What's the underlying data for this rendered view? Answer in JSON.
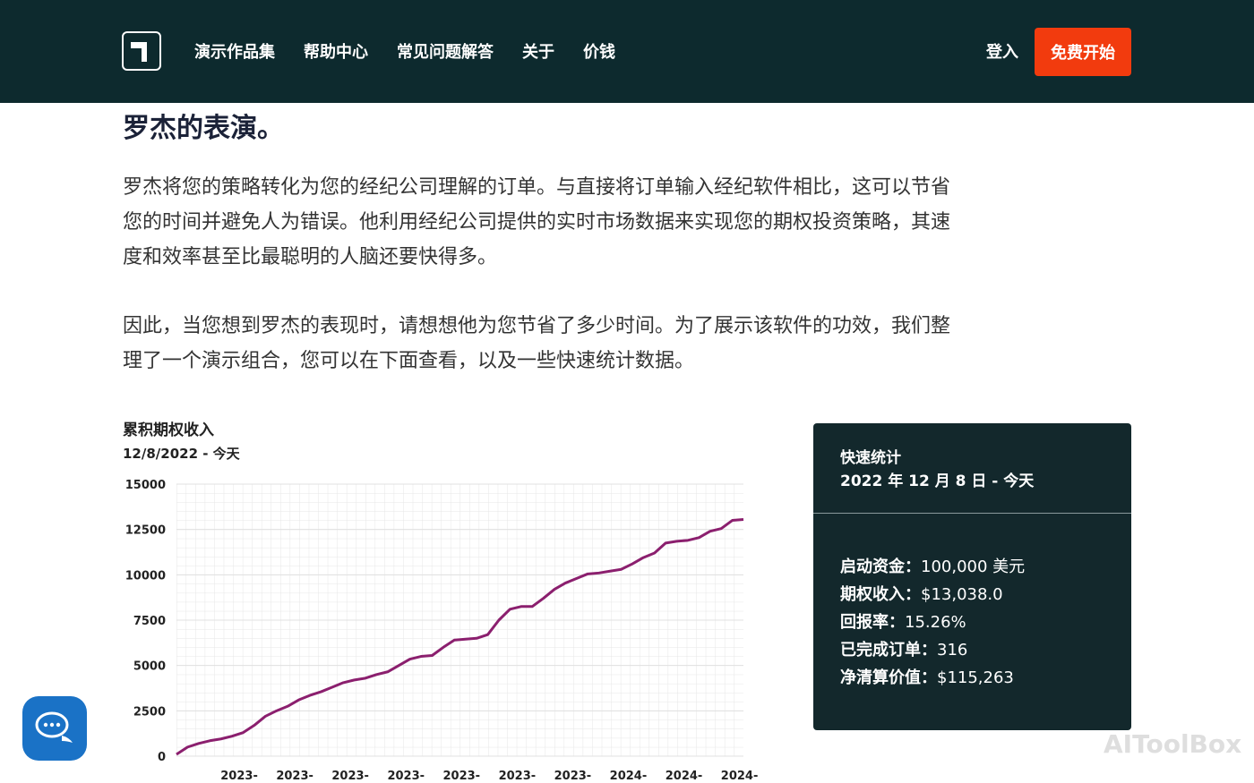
{
  "nav": {
    "items": [
      "演示作品集",
      "帮助中心",
      "常见问题解答",
      "关于",
      "价钱"
    ],
    "login": "登入",
    "cta": "免费开始"
  },
  "content": {
    "heading": "罗杰的表演。",
    "paragraphs": [
      "罗杰将您的策略转化为您的经纪公司理解的订单。与直接将订单输入经纪软件相比，这可以节省您的时间并避免人为错误。他利用经纪公司提供的实时市场数据来实现您的期权投资策略，其速度和效率甚至比最聪明的人脑还要快得多。",
      "因此，当您想到罗杰的表现时，请想想他为您节省了多少时间。为了展示该软件的功效，我们整理了一个演示组合，您可以在下面查看，以及一些快速统计数据。"
    ]
  },
  "chart_data": {
    "type": "line",
    "title": "累积期权收入",
    "subtitle": "12/8/2022 - 今天",
    "categories": [
      null,
      null,
      null,
      null,
      null,
      "2023-",
      null,
      null,
      null,
      null,
      "2023-",
      null,
      null,
      null,
      null,
      "2023-",
      null,
      null,
      null,
      null,
      "2023-",
      null,
      null,
      null,
      null,
      "2023-",
      null,
      null,
      null,
      null,
      "2023-",
      null,
      null,
      null,
      null,
      "2023-",
      null,
      null,
      null,
      null,
      "2024-",
      null,
      null,
      null,
      null,
      "2024-",
      null,
      null,
      null,
      null,
      "2024-",
      null
    ],
    "values": [
      100,
      500,
      700,
      850,
      950,
      1100,
      1300,
      1700,
      2200,
      2500,
      2750,
      3100,
      3350,
      3550,
      3800,
      4050,
      4200,
      4300,
      4500,
      4650,
      5000,
      5350,
      5500,
      5550,
      6000,
      6400,
      6450,
      6500,
      6700,
      7500,
      8100,
      8250,
      8250,
      8700,
      9200,
      9550,
      9800,
      10050,
      10100,
      10200,
      10300,
      10600,
      10950,
      11200,
      11750,
      11850,
      11900,
      12050,
      12400,
      12550,
      13000,
      13050
    ],
    "color": "#8b1f6e",
    "ylim": [
      0,
      15000
    ],
    "yticks": [
      0,
      2500,
      5000,
      7500,
      10000,
      12500,
      15000
    ],
    "grid": true
  },
  "stats": {
    "title": "快速统计",
    "range": "2022 年 12 月 8 日 - 今天",
    "items": [
      {
        "label": "启动资金：",
        "value": "100,000 美元"
      },
      {
        "label": "期权收入：",
        "value": "$13,038.0"
      },
      {
        "label": "回报率：",
        "value": "15.26%"
      },
      {
        "label": "已完成订单：",
        "value": "316"
      },
      {
        "label": "净清算价值：",
        "value": "$115,263"
      }
    ]
  },
  "watermark": "AIToolBox"
}
